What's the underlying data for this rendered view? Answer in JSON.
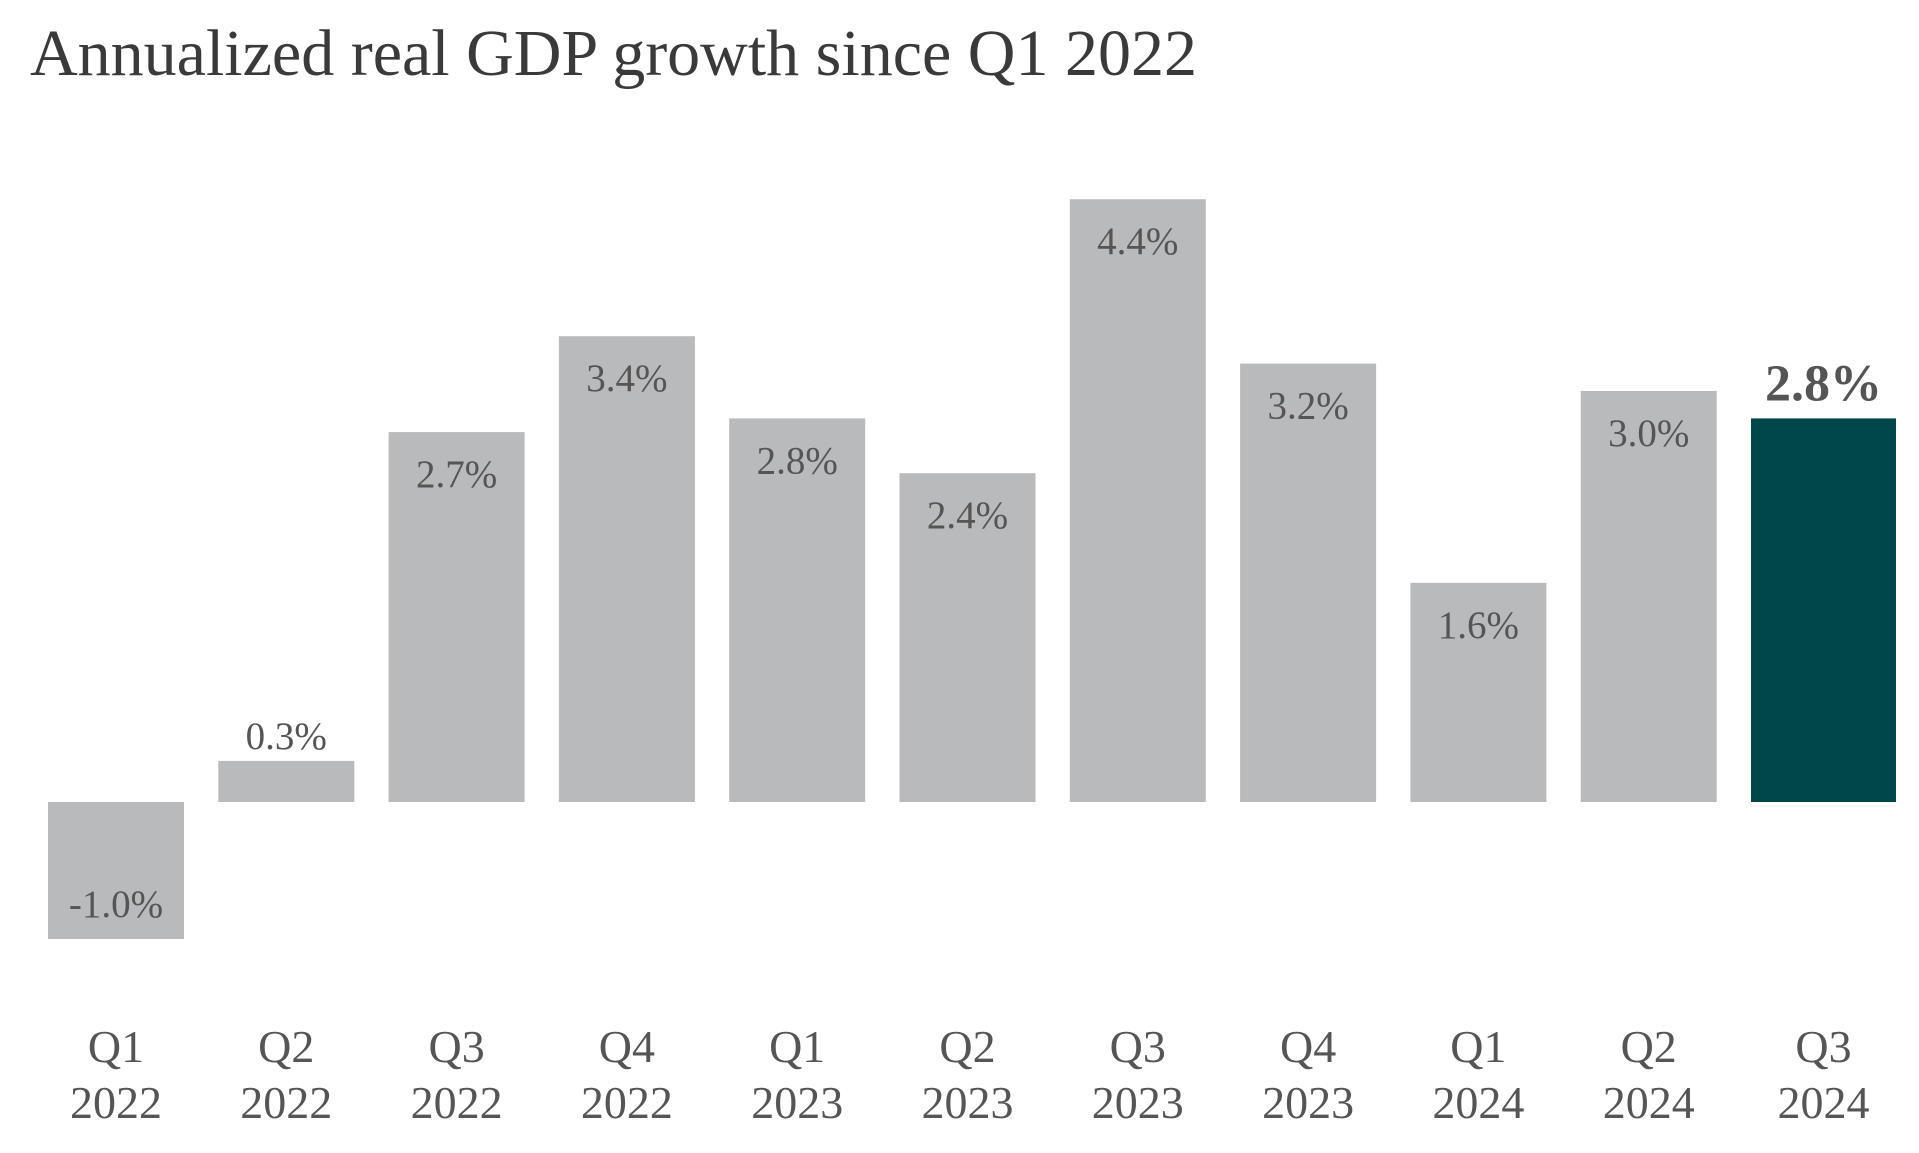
{
  "title": "Annualized real GDP growth since Q1 2022",
  "colors": {
    "bar": "#b9babc",
    "highlight": "#00474a",
    "label": "#555555",
    "title": "#3a3a3a"
  },
  "chart_data": {
    "type": "bar",
    "title": "Annualized real GDP growth since Q1 2022",
    "categories": [
      [
        "Q1",
        "2022"
      ],
      [
        "Q2",
        "2022"
      ],
      [
        "Q3",
        "2022"
      ],
      [
        "Q4",
        "2022"
      ],
      [
        "Q1",
        "2023"
      ],
      [
        "Q2",
        "2023"
      ],
      [
        "Q3",
        "2023"
      ],
      [
        "Q4",
        "2023"
      ],
      [
        "Q1",
        "2024"
      ],
      [
        "Q2",
        "2024"
      ],
      [
        "Q3",
        "2024"
      ]
    ],
    "values": [
      -1.0,
      0.3,
      2.7,
      3.4,
      2.8,
      2.4,
      4.4,
      3.2,
      1.6,
      3.0,
      2.8
    ],
    "data_labels": [
      "-1.0%",
      "0.3%",
      "2.7%",
      "3.4%",
      "2.8%",
      "2.4%",
      "4.4%",
      "3.2%",
      "1.6%",
      "3.0%",
      "2.8%"
    ],
    "highlight_index": 10,
    "xlabel": "",
    "ylabel": "",
    "ylim": [
      -1.0,
      4.4
    ],
    "grid": false,
    "legend": "none"
  }
}
